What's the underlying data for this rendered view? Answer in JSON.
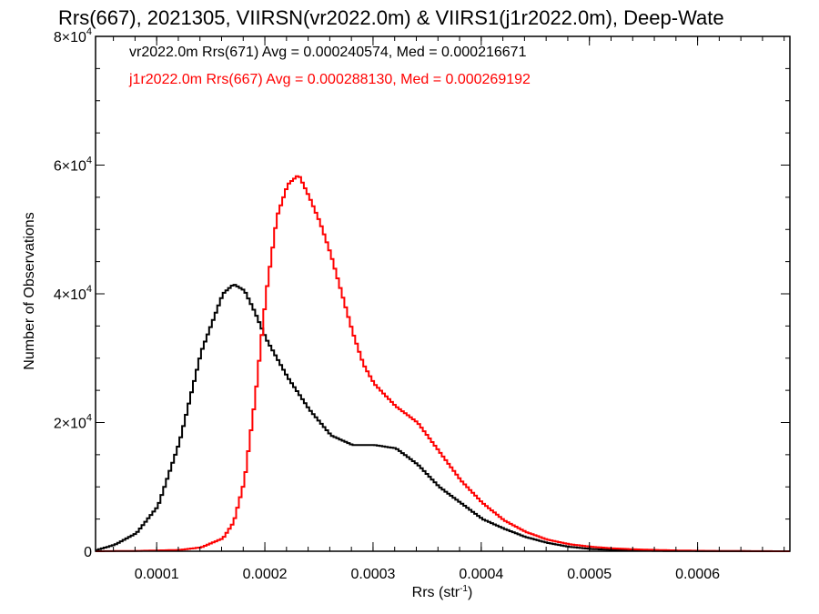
{
  "chart_data": {
    "type": "line",
    "title": "Rrs(667), 2021305, VIIRSN(vr2022.0m) & VIIRS1(j1r2022.0m), Deep-Wate",
    "xlabel": "Rrs (str",
    "xlabel_sup": "-1",
    "xlabel_close": ")",
    "ylabel": "Number of Observations",
    "xlim": [
      4.35e-05,
      0.0006853
    ],
    "ylim": [
      0,
      80000
    ],
    "x_ticks": [
      {
        "value": 0.0001,
        "label": "0.0001"
      },
      {
        "value": 0.0002,
        "label": "0.0002"
      },
      {
        "value": 0.0003,
        "label": "0.0003"
      },
      {
        "value": 0.0004,
        "label": "0.0004"
      },
      {
        "value": 0.0005,
        "label": "0.0005"
      },
      {
        "value": 0.0006,
        "label": "0.0006"
      }
    ],
    "y_ticks": [
      {
        "value": 0,
        "base": "0",
        "exp": ""
      },
      {
        "value": 20000,
        "base": "2×10",
        "exp": "4"
      },
      {
        "value": 40000,
        "base": "4×10",
        "exp": "4"
      },
      {
        "value": 60000,
        "base": "6×10",
        "exp": "4"
      },
      {
        "value": 80000,
        "base": "8×10",
        "exp": "4"
      }
    ],
    "legend": [
      {
        "text": "vr2022.0m Rrs(671) Avg = 0.000240574, Med = 0.000216671",
        "color": "#000000"
      },
      {
        "text": "j1r2022.0m Rrs(667) Avg = 0.000288130, Med = 0.000269192",
        "color": "#ff0000"
      }
    ],
    "legend_position": "top-left",
    "grid": false,
    "series": [
      {
        "color": "#000000",
        "x": [
          4.35e-05,
          6e-05,
          8e-05,
          0.0001,
          0.00012,
          0.00014,
          0.00016,
          0.00017,
          0.00018,
          0.00019,
          0.0002,
          0.00021,
          0.00022,
          0.00024,
          0.00026,
          0.00028,
          0.0003,
          0.00032,
          0.00034,
          0.00036,
          0.00038,
          0.0004,
          0.00042,
          0.00044,
          0.00046,
          0.00048,
          0.0005,
          0.00052,
          0.00054,
          0.00056,
          0.00058,
          0.0006,
          0.00063,
          0.00066,
          0.0006853
        ],
        "y": [
          200,
          1000,
          2800,
          7000,
          17000,
          31000,
          40000,
          41500,
          40500,
          37000,
          33000,
          30000,
          27000,
          22000,
          18000,
          16500,
          16500,
          16000,
          13500,
          10000,
          7500,
          5000,
          3500,
          2200,
          1300,
          700,
          350,
          200,
          100,
          60,
          30,
          20,
          10,
          5,
          0
        ]
      },
      {
        "color": "#ff0000",
        "x": [
          4.35e-05,
          8e-05,
          0.00012,
          0.00014,
          0.00016,
          0.00017,
          0.00018,
          0.00019,
          0.0002,
          0.00021,
          0.00022,
          0.00023,
          0.00024,
          0.00025,
          0.00026,
          0.00027,
          0.00028,
          0.00029,
          0.0003,
          0.00032,
          0.00034,
          0.00036,
          0.00038,
          0.0004,
          0.00042,
          0.00044,
          0.00046,
          0.00048,
          0.0005,
          0.00052,
          0.00054,
          0.00056,
          0.00058,
          0.0006,
          0.00063,
          0.00066,
          0.0006853
        ],
        "y": [
          0,
          50,
          200,
          600,
          2000,
          4500,
          11000,
          24000,
          40000,
          52000,
          57000,
          58500,
          55000,
          51000,
          46000,
          40000,
          34000,
          29000,
          26000,
          22500,
          20000,
          15500,
          11000,
          7500,
          4800,
          3000,
          1800,
          1100,
          700,
          450,
          300,
          200,
          120,
          70,
          30,
          10,
          0
        ]
      }
    ]
  }
}
